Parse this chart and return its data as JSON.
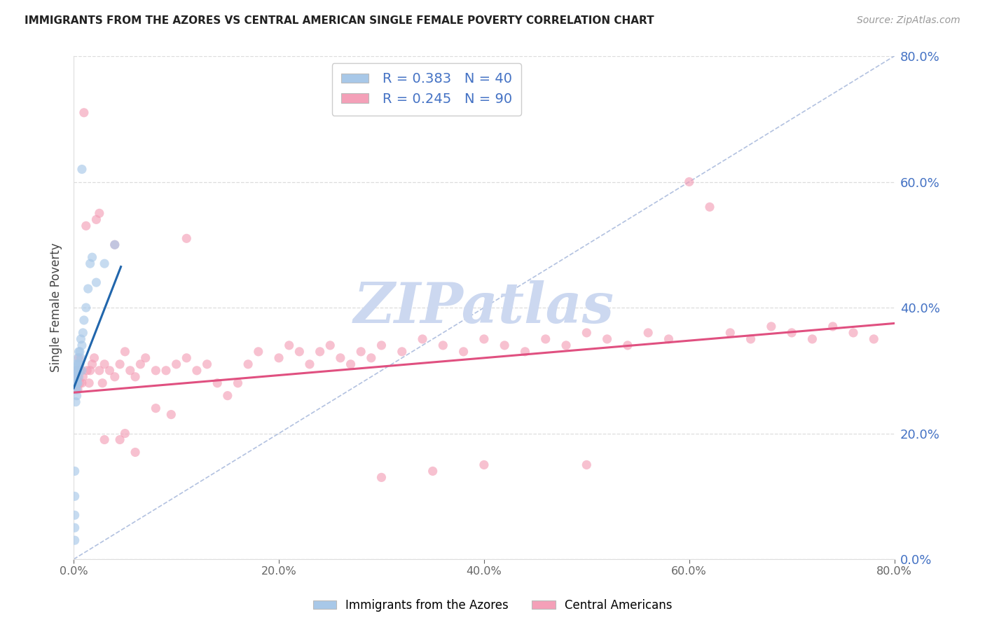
{
  "title": "IMMIGRANTS FROM THE AZORES VS CENTRAL AMERICAN SINGLE FEMALE POVERTY CORRELATION CHART",
  "source": "Source: ZipAtlas.com",
  "ylabel": "Single Female Poverty",
  "legend_label1": "Immigrants from the Azores",
  "legend_label2": "Central Americans",
  "xlim": [
    0.0,
    0.8
  ],
  "ylim": [
    0.0,
    0.8
  ],
  "color_blue": "#a8c8e8",
  "color_pink": "#f4a0b8",
  "color_blue_line": "#2166ac",
  "color_pink_line": "#e05080",
  "color_diag": "#aabbdd",
  "color_title": "#222222",
  "color_right_axis": "#4472c4",
  "color_watermark": "#ccd8f0",
  "watermark_text": "ZIPatlas",
  "blue_x": [
    0.001,
    0.001,
    0.001,
    0.001,
    0.001,
    0.002,
    0.002,
    0.002,
    0.002,
    0.002,
    0.002,
    0.003,
    0.003,
    0.003,
    0.003,
    0.003,
    0.004,
    0.004,
    0.004,
    0.004,
    0.005,
    0.005,
    0.005,
    0.005,
    0.006,
    0.006,
    0.007,
    0.007,
    0.008,
    0.008,
    0.009,
    0.01,
    0.012,
    0.014,
    0.016,
    0.018,
    0.022,
    0.03,
    0.04,
    0.008
  ],
  "blue_y": [
    0.03,
    0.05,
    0.07,
    0.1,
    0.14,
    0.25,
    0.27,
    0.28,
    0.29,
    0.3,
    0.31,
    0.26,
    0.27,
    0.28,
    0.29,
    0.3,
    0.28,
    0.3,
    0.31,
    0.32,
    0.29,
    0.3,
    0.31,
    0.33,
    0.31,
    0.33,
    0.32,
    0.35,
    0.3,
    0.34,
    0.36,
    0.38,
    0.4,
    0.43,
    0.47,
    0.48,
    0.44,
    0.47,
    0.5,
    0.62
  ],
  "blue_line_x": [
    0.0,
    0.046
  ],
  "blue_line_y": [
    0.272,
    0.465
  ],
  "pink_x": [
    0.002,
    0.002,
    0.003,
    0.003,
    0.004,
    0.004,
    0.005,
    0.005,
    0.006,
    0.007,
    0.008,
    0.009,
    0.01,
    0.012,
    0.013,
    0.015,
    0.016,
    0.018,
    0.02,
    0.022,
    0.025,
    0.028,
    0.03,
    0.035,
    0.04,
    0.045,
    0.05,
    0.055,
    0.06,
    0.065,
    0.07,
    0.08,
    0.09,
    0.1,
    0.11,
    0.12,
    0.13,
    0.14,
    0.15,
    0.16,
    0.17,
    0.18,
    0.2,
    0.21,
    0.22,
    0.23,
    0.24,
    0.25,
    0.26,
    0.27,
    0.28,
    0.29,
    0.3,
    0.32,
    0.34,
    0.36,
    0.38,
    0.4,
    0.42,
    0.44,
    0.46,
    0.48,
    0.5,
    0.52,
    0.54,
    0.56,
    0.58,
    0.6,
    0.62,
    0.64,
    0.66,
    0.68,
    0.7,
    0.72,
    0.74,
    0.76,
    0.78,
    0.05,
    0.03,
    0.045,
    0.06,
    0.08,
    0.095,
    0.11,
    0.025,
    0.04,
    0.5,
    0.4,
    0.35,
    0.3
  ],
  "pink_y": [
    0.27,
    0.29,
    0.28,
    0.3,
    0.27,
    0.29,
    0.3,
    0.32,
    0.28,
    0.3,
    0.28,
    0.29,
    0.71,
    0.53,
    0.3,
    0.28,
    0.3,
    0.31,
    0.32,
    0.54,
    0.3,
    0.28,
    0.31,
    0.3,
    0.29,
    0.31,
    0.33,
    0.3,
    0.29,
    0.31,
    0.32,
    0.3,
    0.3,
    0.31,
    0.32,
    0.3,
    0.31,
    0.28,
    0.26,
    0.28,
    0.31,
    0.33,
    0.32,
    0.34,
    0.33,
    0.31,
    0.33,
    0.34,
    0.32,
    0.31,
    0.33,
    0.32,
    0.34,
    0.33,
    0.35,
    0.34,
    0.33,
    0.35,
    0.34,
    0.33,
    0.35,
    0.34,
    0.36,
    0.35,
    0.34,
    0.36,
    0.35,
    0.6,
    0.56,
    0.36,
    0.35,
    0.37,
    0.36,
    0.35,
    0.37,
    0.36,
    0.35,
    0.2,
    0.19,
    0.19,
    0.17,
    0.24,
    0.23,
    0.51,
    0.55,
    0.5,
    0.15,
    0.15,
    0.14,
    0.13
  ],
  "pink_line_x": [
    0.0,
    0.8
  ],
  "pink_line_y": [
    0.265,
    0.375
  ]
}
